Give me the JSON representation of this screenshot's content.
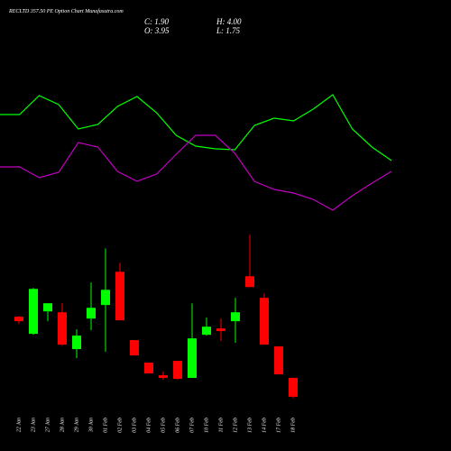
{
  "chart_data": [
    {
      "type": "line",
      "ylim": [
        0,
        250
      ],
      "series": [
        {
          "color": "#00ff00",
          "values": [
            123,
            123,
            144,
            134,
            107,
            112,
            132,
            143,
            125,
            100,
            88,
            85,
            84,
            111,
            119,
            116,
            129,
            145,
            107,
            87,
            72
          ]
        },
        {
          "color": "#c000c0",
          "values": [
            65,
            65,
            53,
            59,
            92,
            87,
            60,
            49,
            57,
            79,
            100,
            100,
            80,
            49,
            40,
            36,
            29,
            17,
            33,
            47,
            60
          ]
        }
      ]
    },
    {
      "type": "candlestick",
      "title": "RECLTD 357.50 PE Option Chart Munafasutra.com",
      "header": [
        "C: 1.90",
        "O: 3.95",
        "H: 4.00",
        "L: 1.75"
      ],
      "categories": [
        "22 Jan",
        "23 Jan",
        "27 Jan",
        "28 Jan",
        "29 Jan",
        "30 Jan",
        "01 Feb",
        "02 Feb",
        "03 Feb",
        "04 Feb",
        "05 Feb",
        "06 Feb",
        "07 Feb",
        "10 Feb",
        "11 Feb",
        "12 Feb",
        "13 Feb",
        "14 Feb",
        "17 Feb",
        "18 Feb"
      ],
      "open": [
        10.59,
        8.73,
        11.17,
        11.07,
        7.07,
        10.39,
        11.86,
        15.47,
        8.05,
        5.61,
        4.24,
        5.8,
        3.95,
        8.63,
        9.32,
        10.1,
        14.98,
        12.64,
        7.37,
        3.95
      ],
      "high": [
        10.68,
        13.71,
        12.05,
        12.05,
        9.22,
        14.3,
        18.0,
        16.44,
        8.05,
        5.61,
        4.63,
        5.8,
        12.05,
        10.49,
        10.39,
        12.64,
        19.47,
        13.12,
        7.37,
        4.0
      ],
      "low": [
        9.81,
        8.63,
        10.1,
        7.46,
        6.1,
        9.12,
        6.78,
        10.2,
        6.39,
        4.44,
        3.75,
        3.75,
        3.95,
        8.54,
        7.95,
        7.76,
        13.81,
        7.56,
        4.34,
        1.75
      ],
      "close": [
        10.1,
        13.61,
        12.05,
        7.56,
        8.54,
        11.56,
        13.51,
        10.2,
        6.39,
        4.44,
        3.95,
        3.85,
        8.24,
        9.51,
        9.03,
        11.07,
        13.81,
        7.56,
        4.34,
        1.9
      ],
      "ylim": [
        1.4,
        20
      ],
      "up_color": "#00ff00",
      "down_color": "#ff0000"
    }
  ]
}
